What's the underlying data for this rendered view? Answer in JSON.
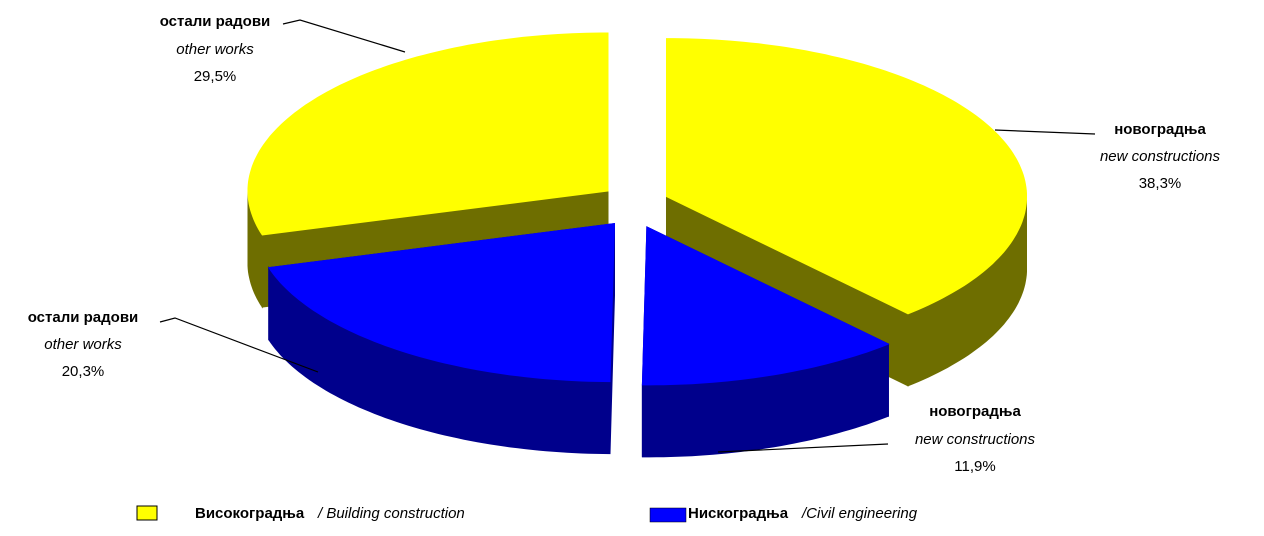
{
  "chart_data": {
    "type": "pie",
    "categories": [
      "новоградња",
      "новоградња",
      "остали радови",
      "остали радови"
    ],
    "categories_en": [
      "new constructions",
      "new constructions",
      "other works",
      "other works"
    ],
    "values": [
      38.3,
      11.9,
      20.3,
      29.5
    ],
    "value_labels": [
      "38,3%",
      "11,9%",
      "20,3%",
      "29,5%"
    ],
    "colors": [
      "#ffff00",
      "#0000ff",
      "#0000ff",
      "#ffff00"
    ],
    "side_colors": [
      "#6e6e00",
      "#00008c",
      "#00008c",
      "#6e6e00"
    ],
    "legend": [
      {
        "name": "Високоградња",
        "name_en": "/ Building construction",
        "color": "#ffff00"
      },
      {
        "name": "Нискоградња",
        "name_en": "/Civil engineering",
        "color": "#0000ff"
      }
    ]
  }
}
